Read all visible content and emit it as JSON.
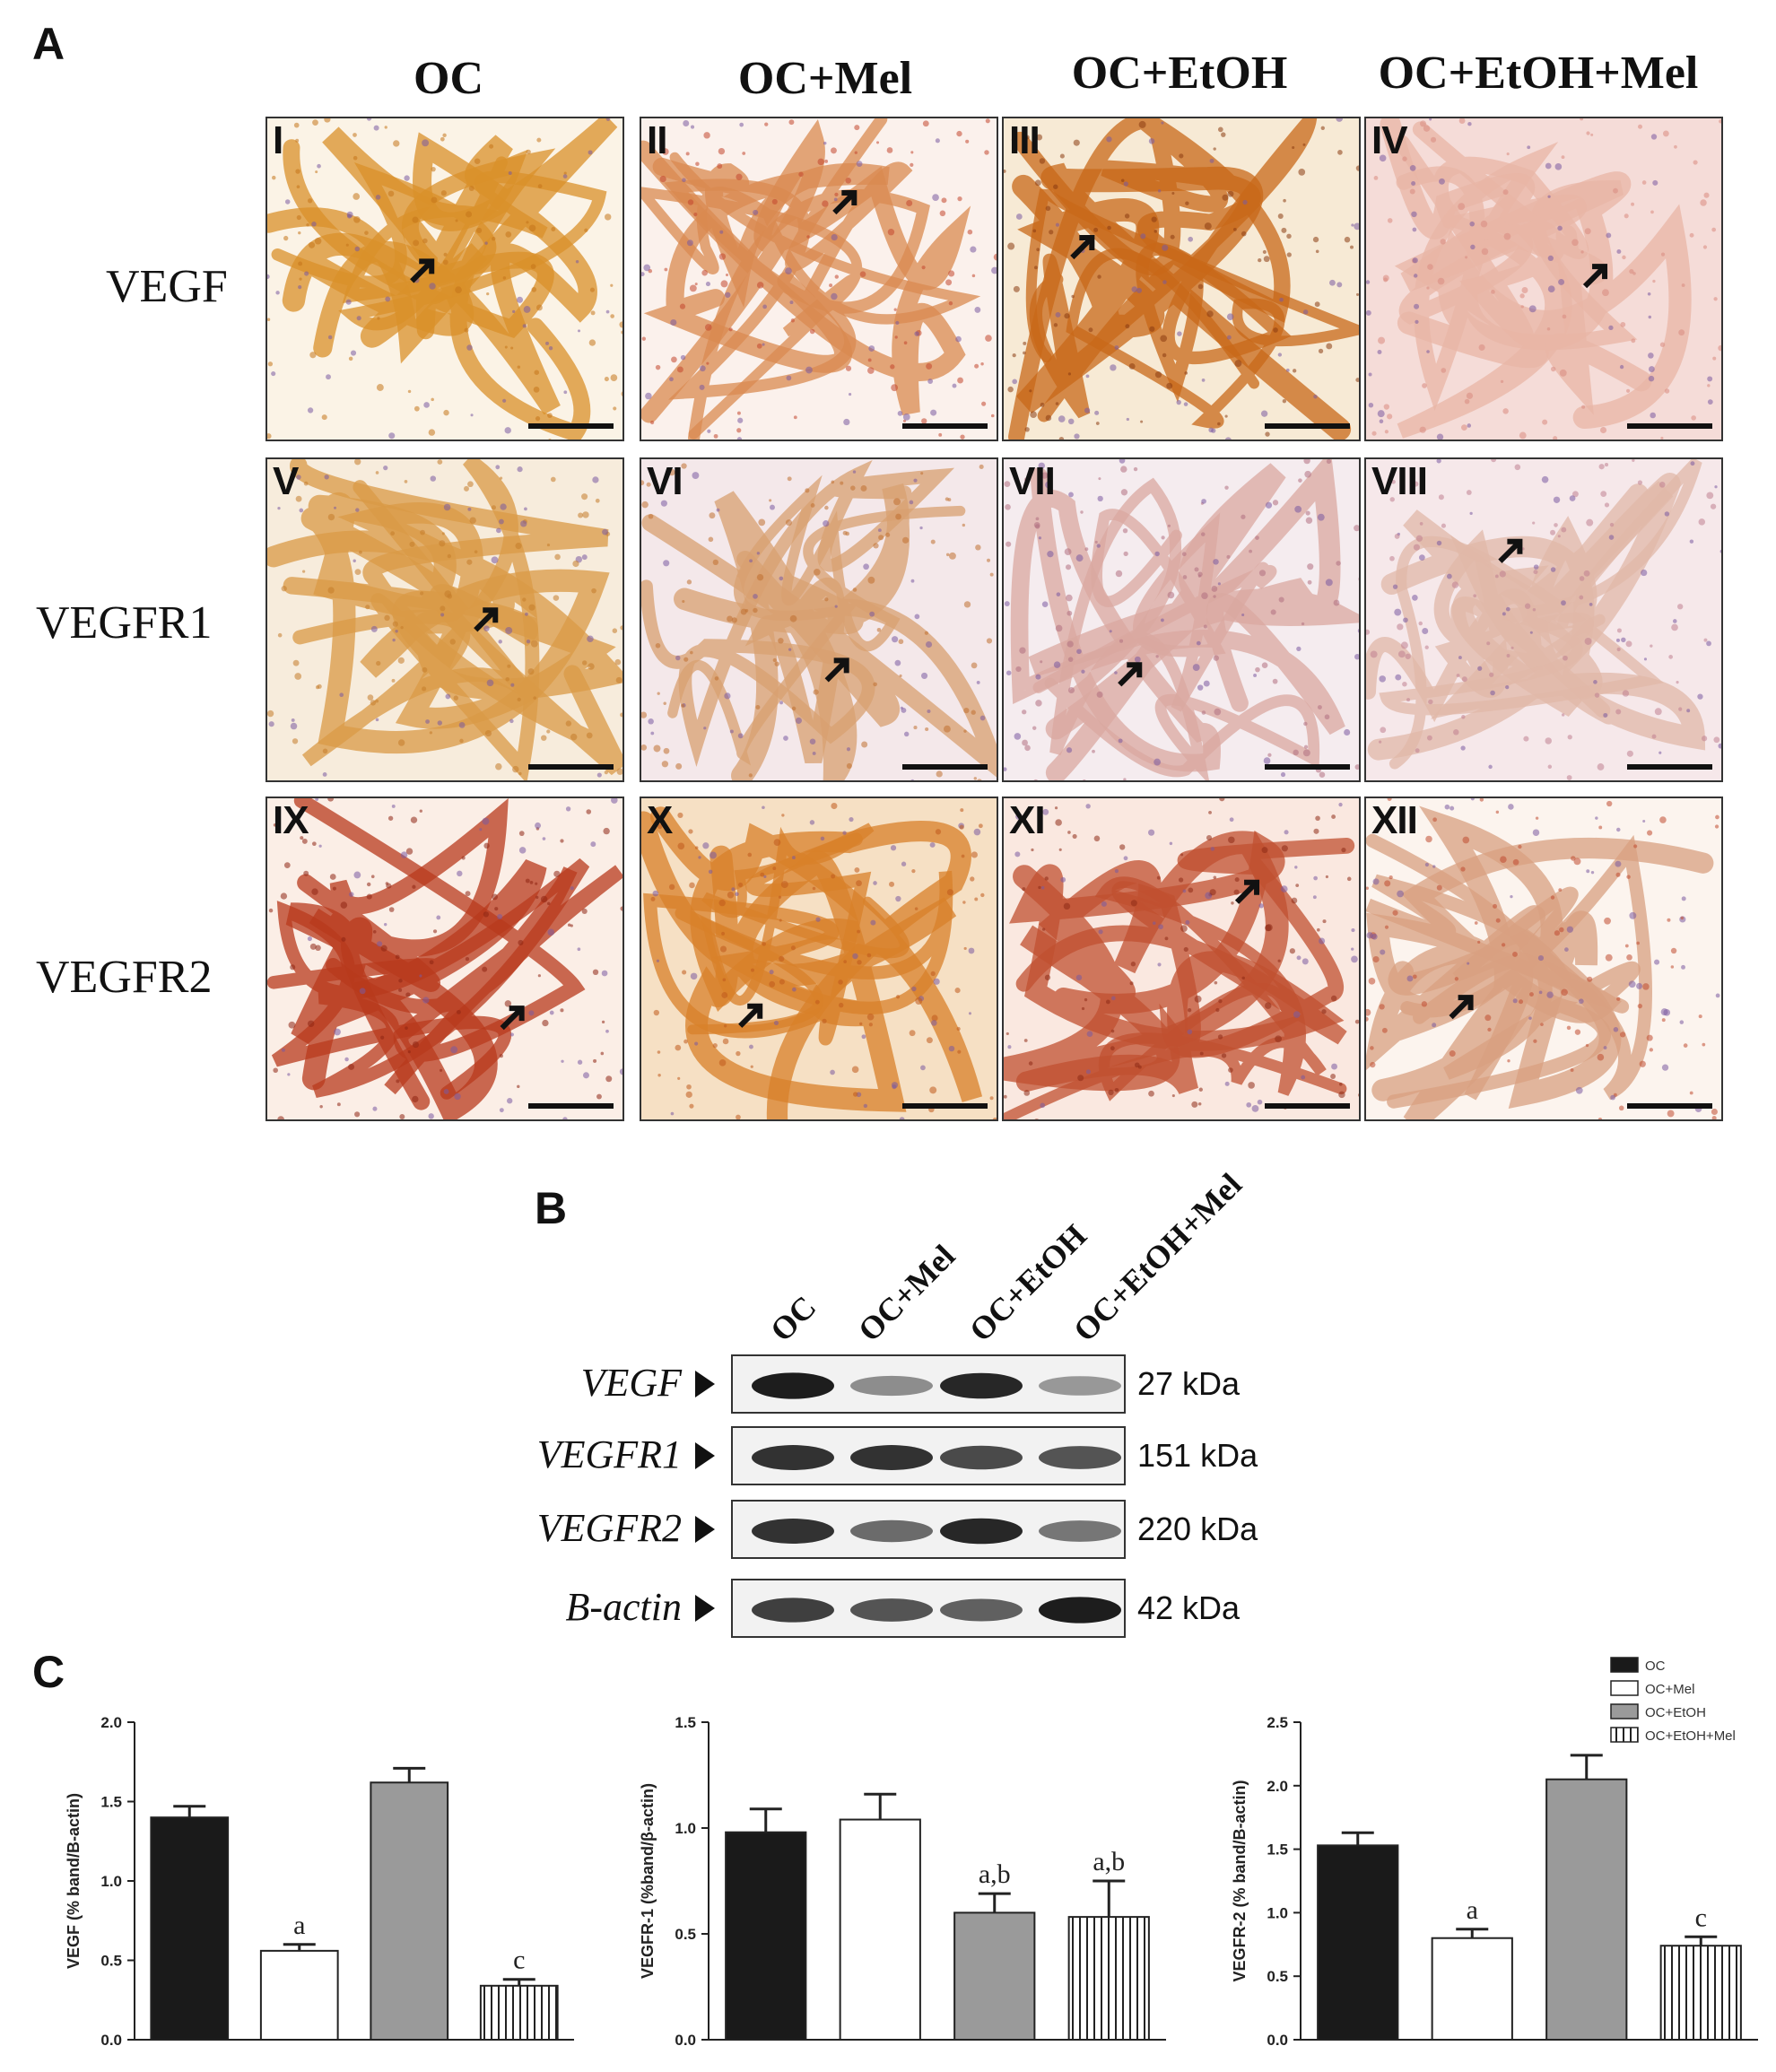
{
  "panels": {
    "a": "A",
    "b": "B",
    "c": "C"
  },
  "ihc": {
    "columns": [
      "OC",
      "OC+Mel",
      "OC+EtOH",
      "OC+EtOH+Mel"
    ],
    "rows": [
      "VEGF",
      "VEGFR1",
      "VEGFR2"
    ],
    "tiles": [
      {
        "label": "I"
      },
      {
        "label": "II"
      },
      {
        "label": "III"
      },
      {
        "label": "IV"
      },
      {
        "label": "V"
      },
      {
        "label": "VI"
      },
      {
        "label": "VII"
      },
      {
        "label": "VIII"
      },
      {
        "label": "IX"
      },
      {
        "label": "X"
      },
      {
        "label": "XI"
      },
      {
        "label": "XII"
      }
    ]
  },
  "blot": {
    "lanes": [
      "OC",
      "OC+Mel",
      "OC+EtOH",
      "OC+EtOH+Mel"
    ],
    "rows": [
      {
        "protein": "VEGF",
        "kda": "27 kDa"
      },
      {
        "protein": "VEGFR1",
        "kda": "151 kDa"
      },
      {
        "protein": "VEGFR2",
        "kda": "220 kDa"
      },
      {
        "protein": "B-actin",
        "kda": "42 kDa"
      }
    ]
  },
  "legend": [
    "OC",
    "OC+Mel",
    "OC+EtOH",
    "OC+EtOH+Mel"
  ],
  "chart_data": [
    {
      "type": "bar",
      "ylabel": "VEGF (% band/B-actin)",
      "categories": [
        "OC",
        "OC+Mel",
        "OC+EtOH",
        "OC+EtOH+Mel"
      ],
      "values": [
        1.4,
        0.56,
        1.62,
        0.34
      ],
      "errors": [
        0.07,
        0.04,
        0.09,
        0.04
      ],
      "annotations": [
        "",
        "a",
        "",
        "c"
      ],
      "ylim": [
        0,
        2.0
      ],
      "yticks": [
        "0.0",
        "0.5",
        "1.0",
        "1.5",
        "2.0"
      ]
    },
    {
      "type": "bar",
      "ylabel": "VEGFR-1 (%band/β-actin)",
      "categories": [
        "OC",
        "OC+Mel",
        "OC+EtOH",
        "OC+EtOH+Mel"
      ],
      "values": [
        0.98,
        1.04,
        0.6,
        0.58
      ],
      "errors": [
        0.11,
        0.12,
        0.09,
        0.17
      ],
      "annotations": [
        "",
        "",
        "a,b",
        "a,b"
      ],
      "ylim": [
        0,
        1.5
      ],
      "yticks": [
        "0.0",
        "0.5",
        "1.0",
        "1.5"
      ]
    },
    {
      "type": "bar",
      "ylabel": "VEGFR-2 (% band/B-actin)",
      "categories": [
        "OC",
        "OC+Mel",
        "OC+EtOH",
        "OC+EtOH+Mel"
      ],
      "values": [
        1.53,
        0.8,
        2.05,
        0.74
      ],
      "errors": [
        0.1,
        0.07,
        0.19,
        0.07
      ],
      "annotations": [
        "",
        "a",
        "",
        "c"
      ],
      "ylim": [
        0,
        2.5
      ],
      "yticks": [
        "0.0",
        "0.5",
        "1.0",
        "1.5",
        "2.0",
        "2.5"
      ]
    }
  ],
  "colors": {
    "oc": "#1a1a1a",
    "oc_mel": "#ffffff",
    "oc_etoh": "#9a9a9a"
  }
}
